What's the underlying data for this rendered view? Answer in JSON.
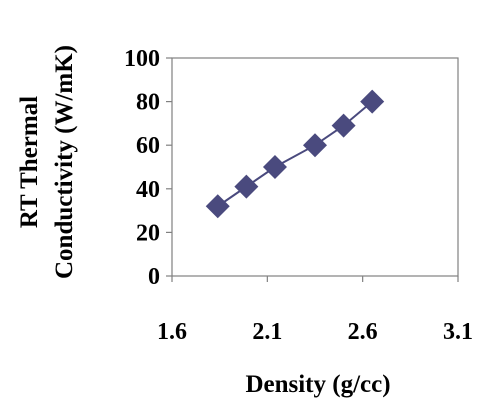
{
  "chart_data": {
    "type": "scatter",
    "title": "",
    "xlabel": "Density (g/cc)",
    "ylabel_lines": [
      "RT Thermal",
      "Conductivity (W/mK)"
    ],
    "xlim": [
      1.6,
      3.1
    ],
    "ylim": [
      0,
      100
    ],
    "xticks": [
      "1.6",
      "2.1",
      "2.6",
      "3.1"
    ],
    "yticks": [
      "0",
      "20",
      "40",
      "60",
      "80",
      "100"
    ],
    "grid": false,
    "legend": "none",
    "series": [
      {
        "marker": "diamond",
        "line": true,
        "color": "#4a4a7e",
        "points": [
          {
            "x": 1.84,
            "y": 32
          },
          {
            "x": 1.99,
            "y": 41
          },
          {
            "x": 2.14,
            "y": 50
          },
          {
            "x": 2.35,
            "y": 60
          },
          {
            "x": 2.5,
            "y": 69
          },
          {
            "x": 2.65,
            "y": 80
          }
        ]
      }
    ]
  }
}
